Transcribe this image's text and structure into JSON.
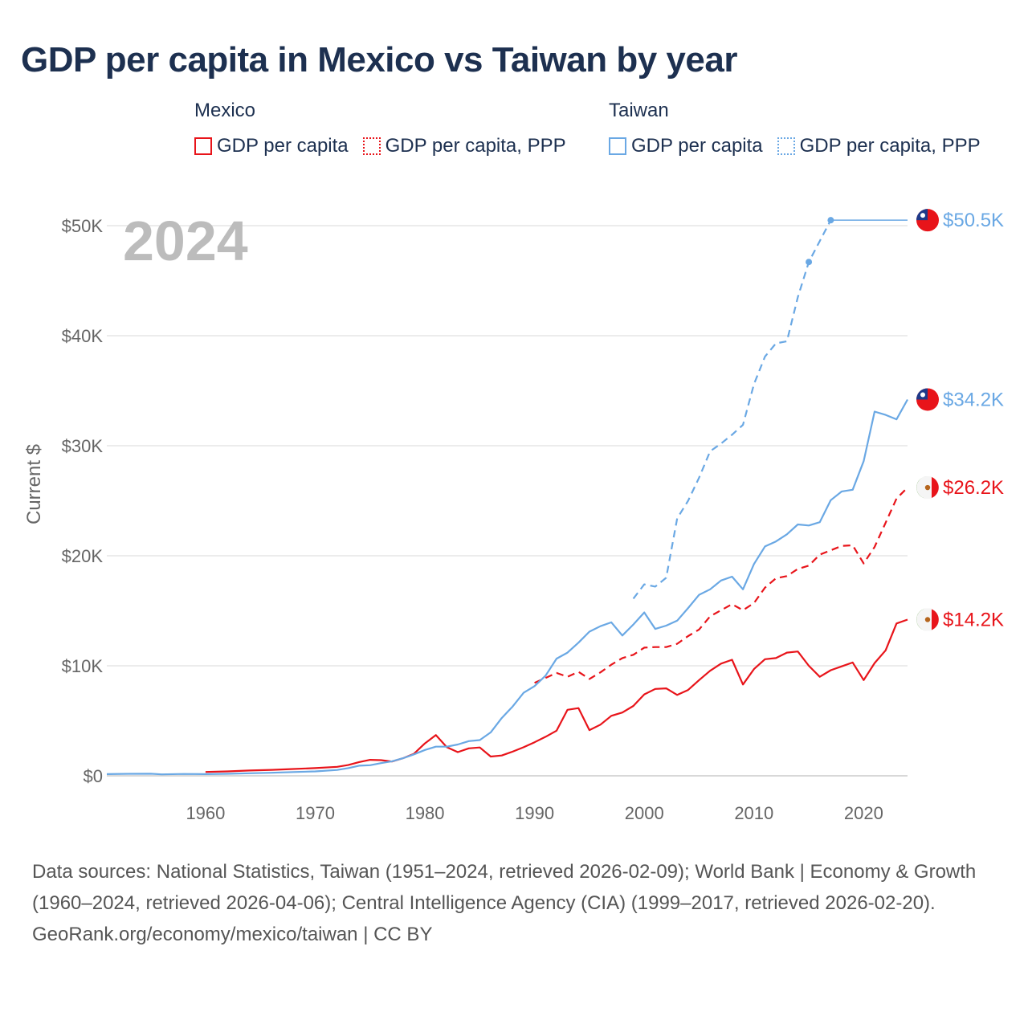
{
  "title": "GDP per capita in Mexico vs Taiwan by year",
  "legend": {
    "mexico": {
      "name": "Mexico",
      "items": [
        "GDP per capita",
        "GDP per capita, PPP"
      ]
    },
    "taiwan": {
      "name": "Taiwan",
      "items": [
        "GDP per capita",
        "GDP per capita, PPP"
      ]
    }
  },
  "colors": {
    "mexico": "#e8141a",
    "taiwan": "#6aa8e4",
    "grid": "#e6e6e6",
    "title": "#1d3050"
  },
  "year_label": "2024",
  "chart_data": {
    "type": "line",
    "title": "GDP per capita in Mexico vs Taiwan by year",
    "xlabel": "",
    "ylabel": "Current $",
    "xlim": [
      1951,
      2024
    ],
    "ylim": [
      0,
      50000
    ],
    "x_ticks": [
      1960,
      1970,
      1980,
      1990,
      2000,
      2010,
      2020
    ],
    "x_tick_labels": [
      "1960",
      "1970",
      "1980",
      "1990",
      "2000",
      "2010",
      "2020"
    ],
    "y_ticks": [
      0,
      10000,
      20000,
      30000,
      40000,
      50000
    ],
    "y_tick_labels": [
      "$0",
      "$10K",
      "$20K",
      "$30K",
      "$40K",
      "$50K"
    ],
    "series": [
      {
        "key": "mex_gdp",
        "name": "Mexico GDP per capita",
        "color": "#e8141a",
        "dash": "none",
        "end_label": "$14.2K",
        "end_value": 14200,
        "flag": "mexico",
        "points": [
          [
            1960,
            350
          ],
          [
            1962,
            400
          ],
          [
            1964,
            480
          ],
          [
            1966,
            540
          ],
          [
            1968,
            620
          ],
          [
            1970,
            700
          ],
          [
            1972,
            820
          ],
          [
            1973,
            980
          ],
          [
            1974,
            1250
          ],
          [
            1975,
            1450
          ],
          [
            1976,
            1420
          ],
          [
            1977,
            1300
          ],
          [
            1978,
            1600
          ],
          [
            1979,
            2000
          ],
          [
            1980,
            2950
          ],
          [
            1981,
            3700
          ],
          [
            1982,
            2600
          ],
          [
            1983,
            2150
          ],
          [
            1984,
            2500
          ],
          [
            1985,
            2580
          ],
          [
            1986,
            1750
          ],
          [
            1987,
            1850
          ],
          [
            1988,
            2200
          ],
          [
            1989,
            2600
          ],
          [
            1990,
            3050
          ],
          [
            1991,
            3550
          ],
          [
            1992,
            4100
          ],
          [
            1993,
            6000
          ],
          [
            1994,
            6150
          ],
          [
            1995,
            4150
          ],
          [
            1996,
            4650
          ],
          [
            1997,
            5450
          ],
          [
            1998,
            5750
          ],
          [
            1999,
            6350
          ],
          [
            2000,
            7400
          ],
          [
            2001,
            7900
          ],
          [
            2002,
            7950
          ],
          [
            2003,
            7350
          ],
          [
            2004,
            7800
          ],
          [
            2005,
            8700
          ],
          [
            2006,
            9550
          ],
          [
            2007,
            10200
          ],
          [
            2008,
            10550
          ],
          [
            2009,
            8300
          ],
          [
            2010,
            9700
          ],
          [
            2011,
            10600
          ],
          [
            2012,
            10700
          ],
          [
            2013,
            11200
          ],
          [
            2014,
            11300
          ],
          [
            2015,
            10000
          ],
          [
            2016,
            9000
          ],
          [
            2017,
            9600
          ],
          [
            2018,
            9950
          ],
          [
            2019,
            10300
          ],
          [
            2020,
            8700
          ],
          [
            2021,
            10250
          ],
          [
            2022,
            11400
          ],
          [
            2023,
            13850
          ],
          [
            2024,
            14200
          ]
        ]
      },
      {
        "key": "mex_ppp",
        "name": "Mexico GDP per capita, PPP",
        "color": "#e8141a",
        "dash": "9,6",
        "end_label": "$26.2K",
        "end_value": 26200,
        "flag": "mexico",
        "points": [
          [
            1990,
            8450
          ],
          [
            1991,
            8900
          ],
          [
            1992,
            9350
          ],
          [
            1993,
            9000
          ],
          [
            1994,
            9450
          ],
          [
            1995,
            8800
          ],
          [
            1996,
            9400
          ],
          [
            1997,
            10100
          ],
          [
            1998,
            10700
          ],
          [
            1999,
            11000
          ],
          [
            2000,
            11650
          ],
          [
            2001,
            11700
          ],
          [
            2002,
            11700
          ],
          [
            2003,
            12000
          ],
          [
            2004,
            12700
          ],
          [
            2005,
            13300
          ],
          [
            2006,
            14500
          ],
          [
            2007,
            15050
          ],
          [
            2008,
            15600
          ],
          [
            2009,
            15050
          ],
          [
            2010,
            15700
          ],
          [
            2011,
            17100
          ],
          [
            2012,
            17950
          ],
          [
            2013,
            18150
          ],
          [
            2014,
            18800
          ],
          [
            2015,
            19100
          ],
          [
            2016,
            20100
          ],
          [
            2017,
            20500
          ],
          [
            2018,
            20900
          ],
          [
            2019,
            20950
          ],
          [
            2020,
            19300
          ],
          [
            2021,
            20800
          ],
          [
            2022,
            23000
          ],
          [
            2023,
            25200
          ],
          [
            2024,
            26200
          ]
        ]
      },
      {
        "key": "twn_gdp",
        "name": "Taiwan GDP per capita",
        "color": "#6aa8e4",
        "dash": "none",
        "end_label": "$34.2K",
        "end_value": 34200,
        "flag": "taiwan",
        "points": [
          [
            1951,
            150
          ],
          [
            1953,
            180
          ],
          [
            1955,
            190
          ],
          [
            1956,
            130
          ],
          [
            1958,
            170
          ],
          [
            1960,
            150
          ],
          [
            1962,
            180
          ],
          [
            1964,
            230
          ],
          [
            1966,
            280
          ],
          [
            1968,
            340
          ],
          [
            1970,
            400
          ],
          [
            1972,
            530
          ],
          [
            1973,
            700
          ],
          [
            1974,
            920
          ],
          [
            1975,
            960
          ],
          [
            1976,
            1150
          ],
          [
            1977,
            1320
          ],
          [
            1978,
            1600
          ],
          [
            1979,
            1950
          ],
          [
            1980,
            2350
          ],
          [
            1981,
            2650
          ],
          [
            1982,
            2650
          ],
          [
            1983,
            2850
          ],
          [
            1984,
            3150
          ],
          [
            1985,
            3250
          ],
          [
            1986,
            3950
          ],
          [
            1987,
            5250
          ],
          [
            1988,
            6300
          ],
          [
            1989,
            7550
          ],
          [
            1990,
            8150
          ],
          [
            1991,
            9100
          ],
          [
            1992,
            10650
          ],
          [
            1993,
            11200
          ],
          [
            1994,
            12100
          ],
          [
            1995,
            13100
          ],
          [
            1996,
            13600
          ],
          [
            1997,
            13950
          ],
          [
            1998,
            12750
          ],
          [
            1999,
            13750
          ],
          [
            2000,
            14850
          ],
          [
            2001,
            13350
          ],
          [
            2002,
            13650
          ],
          [
            2003,
            14100
          ],
          [
            2004,
            15250
          ],
          [
            2005,
            16450
          ],
          [
            2006,
            16950
          ],
          [
            2007,
            17750
          ],
          [
            2008,
            18100
          ],
          [
            2009,
            16950
          ],
          [
            2010,
            19250
          ],
          [
            2011,
            20850
          ],
          [
            2012,
            21300
          ],
          [
            2013,
            21950
          ],
          [
            2014,
            22850
          ],
          [
            2015,
            22750
          ],
          [
            2016,
            23050
          ],
          [
            2017,
            25050
          ],
          [
            2018,
            25850
          ],
          [
            2019,
            26000
          ],
          [
            2020,
            28600
          ],
          [
            2021,
            33100
          ],
          [
            2022,
            32800
          ],
          [
            2023,
            32400
          ],
          [
            2024,
            34200
          ]
        ]
      },
      {
        "key": "twn_ppp",
        "name": "Taiwan GDP per capita, PPP",
        "color": "#6aa8e4",
        "dash": "9,6",
        "end_label": "$50.5K",
        "end_value": 50500,
        "flag": "taiwan",
        "points": [
          [
            1999,
            16100
          ],
          [
            2000,
            17400
          ],
          [
            2001,
            17200
          ],
          [
            2002,
            18000
          ],
          [
            2003,
            23400
          ],
          [
            2004,
            25000
          ],
          [
            2005,
            27100
          ],
          [
            2006,
            29500
          ],
          [
            2007,
            30200
          ],
          [
            2008,
            31000
          ],
          [
            2009,
            31900
          ],
          [
            2010,
            35600
          ],
          [
            2011,
            38100
          ],
          [
            2012,
            39300
          ],
          [
            2013,
            39500
          ],
          [
            2014,
            43500
          ],
          [
            2015,
            46700
          ],
          [
            2016,
            48600
          ],
          [
            2017,
            50500
          ]
        ],
        "markers": [
          [
            2015,
            46700
          ],
          [
            2017,
            50500
          ]
        ],
        "carry_forward_to": 2024
      }
    ]
  },
  "footer": {
    "sources": "Data sources: National Statistics, Taiwan (1951–2024, retrieved 2026-02-09); World Bank | Economy & Growth (1960–2024, retrieved 2026-04-06); Central Intelligence Agency (CIA) (1999–2017, retrieved 2026-02-20).",
    "credit": "GeoRank.org/economy/mexico/taiwan | CC BY"
  }
}
